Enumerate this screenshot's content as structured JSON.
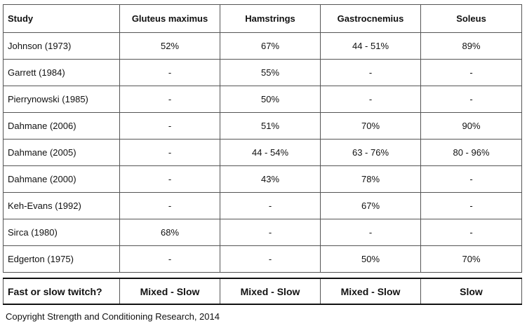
{
  "table": {
    "header": [
      "Study",
      "Gluteus maximus",
      "Hamstrings",
      "Gastrocnemius",
      "Soleus"
    ],
    "rows": [
      [
        "Johnson (1973)",
        "52%",
        "67%",
        "44 - 51%",
        "89%"
      ],
      [
        "Garrett (1984)",
        "-",
        "55%",
        "-",
        "-"
      ],
      [
        "Pierrynowski (1985)",
        "-",
        "50%",
        "-",
        "-"
      ],
      [
        "Dahmane (2006)",
        "-",
        "51%",
        "70%",
        "90%"
      ],
      [
        "Dahmane (2005)",
        "-",
        "44 - 54%",
        "63 - 76%",
        "80 - 96%"
      ],
      [
        "Dahmane (2000)",
        "-",
        "43%",
        "78%",
        "-"
      ],
      [
        "Keh-Evans (1992)",
        "-",
        "-",
        "67%",
        "-"
      ],
      [
        "Sirca (1980)",
        "68%",
        "-",
        "-",
        "-"
      ],
      [
        "Edgerton (1975)",
        "-",
        "-",
        "50%",
        "70%"
      ]
    ],
    "summary": [
      "Fast or slow twitch?",
      "Mixed - Slow",
      "Mixed - Slow",
      "Mixed - Slow",
      "Slow"
    ]
  },
  "footer": "Copyright Strength and Conditioning Research, 2014"
}
